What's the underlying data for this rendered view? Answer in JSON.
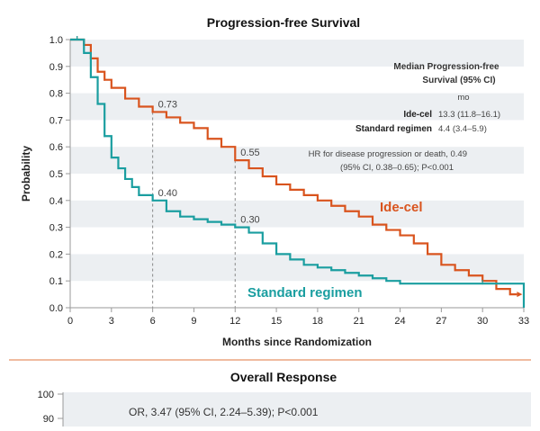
{
  "chart_data": [
    {
      "type": "line",
      "title": "Progression-free Survival",
      "xlabel": "Months since Randomization",
      "ylabel": "Probability",
      "xlim": [
        0,
        33
      ],
      "ylim": [
        0,
        1.0
      ],
      "x_ticks": [
        0,
        3,
        6,
        9,
        12,
        15,
        18,
        21,
        24,
        27,
        30,
        33
      ],
      "y_ticks": [
        "0.0",
        "0.1",
        "0.2",
        "0.3",
        "0.4",
        "0.5",
        "0.6",
        "0.7",
        "0.8",
        "0.9",
        "1.0"
      ],
      "series": [
        {
          "name": "Ide-cel",
          "color": "#d9541e",
          "points": [
            [
              0,
              1.0
            ],
            [
              0.5,
              1.0
            ],
            [
              1,
              0.98
            ],
            [
              1.5,
              0.93
            ],
            [
              2,
              0.88
            ],
            [
              2.5,
              0.85
            ],
            [
              3,
              0.82
            ],
            [
              4,
              0.78
            ],
            [
              5,
              0.75
            ],
            [
              6,
              0.73
            ],
            [
              7,
              0.71
            ],
            [
              8,
              0.69
            ],
            [
              9,
              0.67
            ],
            [
              10,
              0.63
            ],
            [
              11,
              0.6
            ],
            [
              12,
              0.55
            ],
            [
              13,
              0.52
            ],
            [
              14,
              0.49
            ],
            [
              15,
              0.46
            ],
            [
              16,
              0.44
            ],
            [
              17,
              0.42
            ],
            [
              18,
              0.4
            ],
            [
              19,
              0.38
            ],
            [
              20,
              0.36
            ],
            [
              21,
              0.34
            ],
            [
              22,
              0.31
            ],
            [
              23,
              0.29
            ],
            [
              24,
              0.27
            ],
            [
              25,
              0.24
            ],
            [
              26,
              0.2
            ],
            [
              27,
              0.16
            ],
            [
              28,
              0.14
            ],
            [
              29,
              0.12
            ],
            [
              30,
              0.1
            ],
            [
              31,
              0.07
            ],
            [
              32,
              0.05
            ],
            [
              32.5,
              0.05
            ]
          ]
        },
        {
          "name": "Standard regimen",
          "color": "#1a9ea0",
          "points": [
            [
              0,
              1.0
            ],
            [
              0.5,
              1.0
            ],
            [
              1,
              0.95
            ],
            [
              1.5,
              0.86
            ],
            [
              2,
              0.76
            ],
            [
              2.5,
              0.64
            ],
            [
              3,
              0.56
            ],
            [
              3.5,
              0.52
            ],
            [
              4,
              0.48
            ],
            [
              4.5,
              0.45
            ],
            [
              5,
              0.42
            ],
            [
              6,
              0.4
            ],
            [
              7,
              0.36
            ],
            [
              8,
              0.34
            ],
            [
              9,
              0.33
            ],
            [
              10,
              0.32
            ],
            [
              11,
              0.31
            ],
            [
              12,
              0.3
            ],
            [
              13,
              0.28
            ],
            [
              14,
              0.24
            ],
            [
              15,
              0.2
            ],
            [
              16,
              0.18
            ],
            [
              17,
              0.16
            ],
            [
              18,
              0.15
            ],
            [
              19,
              0.14
            ],
            [
              20,
              0.13
            ],
            [
              21,
              0.12
            ],
            [
              22,
              0.11
            ],
            [
              23,
              0.1
            ],
            [
              24,
              0.09
            ],
            [
              27,
              0.09
            ],
            [
              30,
              0.09
            ],
            [
              33,
              0.08
            ],
            [
              33,
              0.0
            ]
          ]
        }
      ],
      "annotations": [
        {
          "x": 6,
          "y": 0.73,
          "text": "0.73"
        },
        {
          "x": 12,
          "y": 0.55,
          "text": "0.55"
        },
        {
          "x": 6,
          "y": 0.4,
          "text": "0.40"
        },
        {
          "x": 12,
          "y": 0.3,
          "text": "0.30"
        }
      ],
      "series_labels": [
        "Ide-cel",
        "Standard regimen"
      ],
      "legend": {
        "header": [
          "Median Progression-free",
          "Survival (95% CI)"
        ],
        "unit": "mo",
        "rows": [
          {
            "arm": "Ide-cel",
            "value": "13.3 (11.8–16.1)"
          },
          {
            "arm": "Standard regimen",
            "value": "4.4 (3.4–5.9)"
          }
        ],
        "hr": [
          "HR for disease progression or death, 0.49",
          "(95% CI, 0.38–0.65); P<0.001"
        ]
      }
    },
    {
      "type": "bar",
      "title": "Overall Response",
      "y_ticks": [
        "100",
        "90"
      ],
      "ylim_visible": [
        90,
        100
      ],
      "annotation": "OR, 3.47 (95% CI, 2.24–5.39); P<0.001"
    }
  ]
}
